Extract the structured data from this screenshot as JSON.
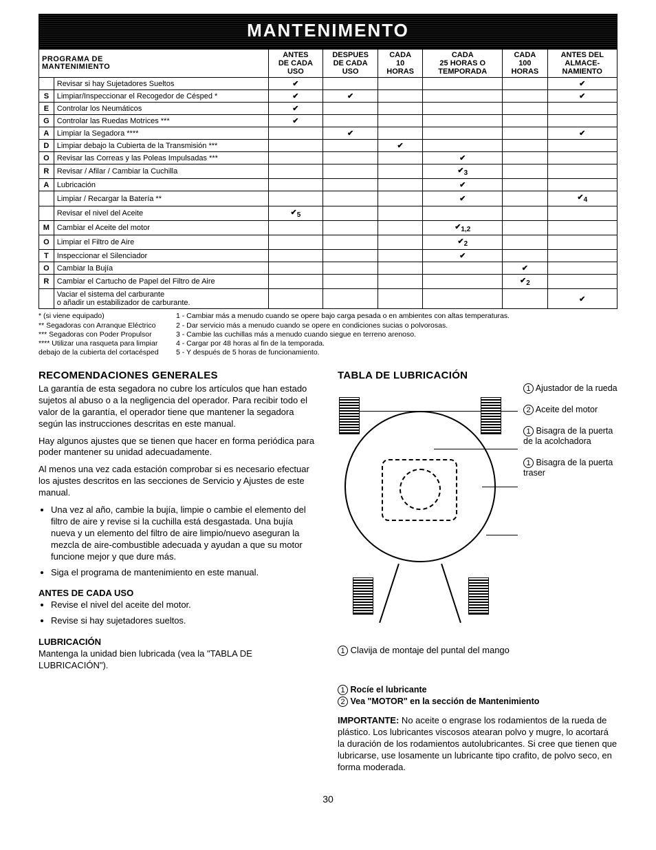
{
  "banner": "MANTENIMENTO",
  "table": {
    "title_l1": "PROGRAMA DE",
    "title_l2": "MANTENIMIENTO",
    "cols": {
      "c1": "ANTES\nDE CADA\nUSO",
      "c2": "DESPUES\nDE CADA\nUSO",
      "c3": "CADA\n10\nHORAS",
      "c4": "CADA\n25 HORAS O\nTEMPORADA",
      "c5": "CADA\n100\nHORAS",
      "c6": "ANTES DEL\nALMACE-\nNAMIENTO"
    },
    "vert1": [
      "S",
      "E",
      "G",
      "A",
      "D",
      "O",
      "R",
      "A"
    ],
    "vert2": [
      "M",
      "O",
      "T",
      "O",
      "R"
    ],
    "rows": [
      {
        "v": "",
        "label": "Revisar si hay Sujetadores Sueltos",
        "c": [
          "✔",
          "",
          "",
          "",
          "",
          "✔"
        ]
      },
      {
        "v": "S",
        "label": "Limpiar/Inspeccionar el Recogedor de Césped *",
        "c": [
          "✔",
          "✔",
          "",
          "",
          "",
          "✔"
        ]
      },
      {
        "v": "E",
        "label": "Controlar los Neumáticos",
        "c": [
          "✔",
          "",
          "",
          "",
          "",
          ""
        ]
      },
      {
        "v": "G",
        "label": "Controlar las Ruedas Motrices ***",
        "c": [
          "✔",
          "",
          "",
          "",
          "",
          ""
        ]
      },
      {
        "v": "A",
        "label": "Limpiar la Segadora ****",
        "c": [
          "",
          "✔",
          "",
          "",
          "",
          "✔"
        ]
      },
      {
        "v": "D",
        "label": "Limpiar debajo la Cubierta de la Transmisión ***",
        "c": [
          "",
          "",
          "✔",
          "",
          "",
          ""
        ]
      },
      {
        "v": "O",
        "label": "Revisar las Correas y las Poleas Impulsadas ***",
        "c": [
          "",
          "",
          "",
          "✔",
          "",
          ""
        ]
      },
      {
        "v": "R",
        "label": "Revisar / Afilar / Cambiar la Cuchilla",
        "c": [
          "",
          "",
          "",
          "✔3",
          "",
          ""
        ]
      },
      {
        "v": "A",
        "label": "Lubricación",
        "c": [
          "",
          "",
          "",
          "✔",
          "",
          ""
        ]
      },
      {
        "v": "",
        "label": "Limpiar / Recargar la Batería **",
        "c": [
          "",
          "",
          "",
          "✔",
          "",
          "✔4"
        ]
      },
      {
        "v": "",
        "label": "Revisar el nivel del Aceite",
        "c": [
          "✔5",
          "",
          "",
          "",
          "",
          ""
        ]
      },
      {
        "v": "M",
        "label": "Cambiar el Aceite del motor",
        "c": [
          "",
          "",
          "",
          "✔1,2",
          "",
          ""
        ]
      },
      {
        "v": "O",
        "label": "Limpiar el Filtro de Aire",
        "c": [
          "",
          "",
          "",
          "✔2",
          "",
          ""
        ]
      },
      {
        "v": "T",
        "label": "Inspeccionar el Silenciador",
        "c": [
          "",
          "",
          "",
          "✔",
          "",
          ""
        ]
      },
      {
        "v": "O",
        "label": "Cambiar la Bujía",
        "c": [
          "",
          "",
          "",
          "",
          "✔",
          ""
        ]
      },
      {
        "v": "R",
        "label": "Cambiar el Cartucho de Papel del Filtro de Aire",
        "c": [
          "",
          "",
          "",
          "",
          "✔2",
          ""
        ]
      },
      {
        "v": "",
        "label": "Vaciar el sistema del carburante\no añadir un estabilizador de carburante.",
        "c": [
          "",
          "",
          "",
          "",
          "",
          "✔"
        ]
      }
    ]
  },
  "footnotes": {
    "l1": "* (si viene equipado)",
    "l2": "** Segadoras con Arranque Eléctrico",
    "l3": "*** Segadoras con Poder Propulsor",
    "l4": "**** Utilizar una rasqueta para limpiar",
    "l5": "debajo de la cubierta del cortacésped",
    "r1": "1 - Cambiar más a menudo cuando se opere bajo carga pesada o en ambientes con altas temperaturas.",
    "r2": "2 - Dar servicio más a menudo cuando se opere en condiciones sucias o polvorosas.",
    "r3": "3 - Cambie las cuchillas más a menudo cuando siegue en terreno arenoso.",
    "r4": "4 - Cargar por 48 horas al fin de la temporada.",
    "r5": "5 - Y después de 5 horas de funcionamiento."
  },
  "left": {
    "h1": "RECOMENDACIONES GENERALES",
    "p1": "La garantía de esta segadora no cubre los artículos que han estado sujetos al abuso o a la negligencia del operador. Para recibir todo el valor de la garantía, el operador tiene que mantener la segadora según las instrucciones descritas en este manual.",
    "p2": "Hay algunos ajustes que se tienen que hacer en forma periódica para poder mantener su unidad adecuadamente.",
    "p3": "Al menos una vez cada estación comprobar si es necesario efectuar los ajustes descritos en las secciones de Servicio y Ajustes de este manual.",
    "b1": "Una vez al año, cambie la bujía, limpie o cambie el elemento del filtro de aire y revise si la cuchilla está desgastada. Una bujía nueva y un elemento del filtro de aire limpio/nuevo aseguran la mezcla de aire-combustible adecuada y ayudan a que su motor funcione mejor y que dure más.",
    "b2": "Siga el programa de mantenimiento en este manual.",
    "h2": "ANTES DE CADA USO",
    "b3": "Revise el nivel del aceite del motor.",
    "b4": "Revise si hay sujetadores sueltos.",
    "h3": "LUBRICACIÓN",
    "p4": "Mantenga la unidad bien lubricada (vea la \"TABLA DE LUBRICACIÓN\")."
  },
  "right": {
    "h1": "TABLA DE LUBRICACIÓN",
    "callouts": {
      "c1": "Ajustador de la rueda",
      "c2": "Aceite del motor",
      "c3": "Bisagra de la puerta de la acolchadora",
      "c4": "Bisagra de la puerta traser"
    },
    "caption": "Clavija de montaje del puntal del mango",
    "legend1": "Rocíe el lubricante",
    "legend2": "Vea \"MOTOR\" en la sección de Mantenimiento",
    "imp_label": "IMPORTANTE:",
    "imp_text": " No aceite o engrase los rodamientos de la rueda de plástico. Los lubricantes viscosos atearan polvo y mugre, lo acortará la duración de los rodamientos autolubricantes. Si cree que tienen que lubricarse, use losamente un lubricante tipo crafito, de polvo seco, en forma moderada."
  },
  "page": "30"
}
